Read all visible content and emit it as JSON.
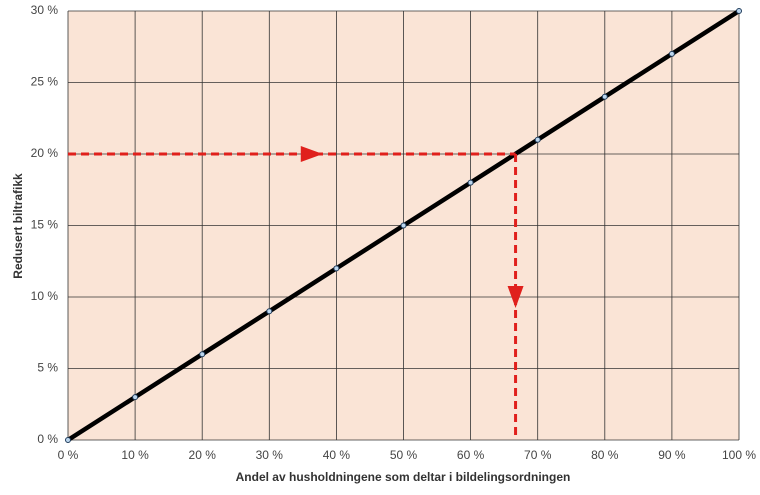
{
  "chart_data": {
    "type": "line",
    "x_label": "Andel av husholdningene som deltar i bildelingsordningen",
    "y_label": "Redusert biltrafikk",
    "x": [
      0,
      10,
      20,
      30,
      40,
      50,
      60,
      70,
      80,
      90,
      100
    ],
    "series": [
      {
        "color": "#000000",
        "values": [
          0,
          3,
          6,
          9,
          12,
          15,
          18,
          21,
          24,
          27,
          30
        ]
      }
    ],
    "xlim": [
      0,
      100
    ],
    "ylim": [
      0,
      30
    ],
    "xticks": [
      {
        "value": 0,
        "label": "0 %"
      },
      {
        "value": 10,
        "label": "10 %"
      },
      {
        "value": 20,
        "label": "20 %"
      },
      {
        "value": 30,
        "label": "30 %"
      },
      {
        "value": 40,
        "label": "40 %"
      },
      {
        "value": 50,
        "label": "50 %"
      },
      {
        "value": 60,
        "label": "60 %"
      },
      {
        "value": 70,
        "label": "70 %"
      },
      {
        "value": 80,
        "label": "80 %"
      },
      {
        "value": 90,
        "label": "90 %"
      },
      {
        "value": 100,
        "label": "100 %"
      }
    ],
    "yticks": [
      {
        "value": 0,
        "label": "0 %"
      },
      {
        "value": 5,
        "label": "5 %"
      },
      {
        "value": 10,
        "label": "10 %"
      },
      {
        "value": 15,
        "label": "15 %"
      },
      {
        "value": 20,
        "label": "20 %"
      },
      {
        "value": 25,
        "label": "25 %"
      },
      {
        "value": 30,
        "label": "30 %"
      }
    ],
    "grid": true,
    "background": "#fae4d6",
    "reference": {
      "x": 66.7,
      "y": 20,
      "color": "#e0201c"
    }
  }
}
